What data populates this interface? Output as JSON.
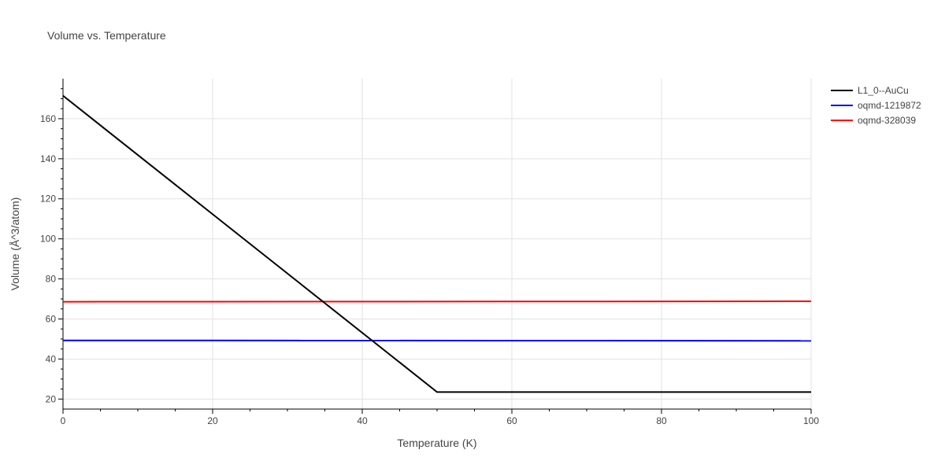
{
  "chart_data": {
    "type": "line",
    "title": "Volume vs. Temperature",
    "xlabel": "Temperature (K)",
    "ylabel": "Volume (Å^3/atom)",
    "xlim": [
      0,
      100
    ],
    "ylim": [
      15,
      180
    ],
    "xticks": [
      0,
      20,
      40,
      60,
      80,
      100
    ],
    "yticks": [
      20,
      40,
      60,
      80,
      100,
      120,
      140,
      160
    ],
    "grid": true,
    "legend_position": "right",
    "series": [
      {
        "name": "L1_0--AuCu",
        "color": "#000000",
        "x": [
          0,
          50,
          100
        ],
        "y": [
          171.5,
          23.5,
          23.5
        ]
      },
      {
        "name": "oqmd-1219872",
        "color": "#0000ff",
        "x": [
          0,
          100
        ],
        "y": [
          49.3,
          49.1
        ]
      },
      {
        "name": "oqmd-328039",
        "color": "#ff0000",
        "x": [
          0,
          100
        ],
        "y": [
          68.6,
          68.8
        ]
      }
    ]
  }
}
